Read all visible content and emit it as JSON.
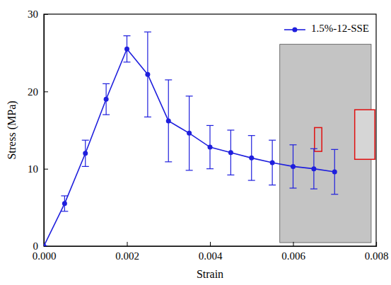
{
  "chart_data": {
    "type": "line",
    "x_label": "Strain",
    "y_label": "Stress (MPa)",
    "x": [
      0,
      0.0005,
      0.001,
      0.0015,
      0.002,
      0.0025,
      0.003,
      0.0035,
      0.004,
      0.0045,
      0.005,
      0.0055,
      0.006,
      0.0065,
      0.007
    ],
    "series": [
      {
        "name": "1.5%-12-SSE",
        "color": "#1f1fdd",
        "marker": "circle",
        "line_style": "solid",
        "values": [
          0,
          5.5,
          12,
          19,
          25.5,
          22.2,
          16.2,
          14.6,
          12.8,
          12.1,
          11.4,
          10.8,
          10.3,
          10.0,
          9.6
        ],
        "errors": [
          0,
          1.0,
          1.7,
          2.0,
          1.7,
          5.5,
          5.3,
          4.8,
          2.8,
          2.9,
          2.9,
          2.9,
          2.8,
          2.6,
          2.9
        ]
      }
    ],
    "xlim": [
      0,
      0.008
    ],
    "xticks": [
      {
        "value": 0,
        "label": "0.000"
      },
      {
        "value": 0.002,
        "label": "0.002"
      },
      {
        "value": 0.004,
        "label": "0.004"
      },
      {
        "value": 0.006,
        "label": "0.006"
      },
      {
        "value": 0.008,
        "label": "0.008"
      }
    ],
    "ylim": [
      0,
      30
    ],
    "yticks": [
      0,
      10,
      20,
      30
    ],
    "legend": "upper right"
  }
}
